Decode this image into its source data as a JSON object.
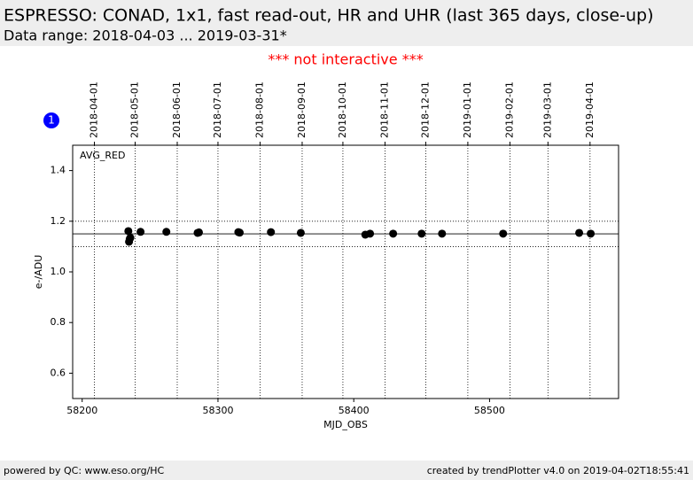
{
  "header": {
    "title": "ESPRESSO: CONAD, 1x1, fast read-out, HR and UHR (last 365 days, close-up)",
    "subtitle": "Data range: 2018-04-03 ... 2019-03-31*",
    "notice": "*** not interactive ***",
    "badge": "1"
  },
  "chart_data": {
    "type": "scatter",
    "panel_label": "AVG_RED",
    "x_label": "MJD_OBS",
    "y_label": "e-/ADU",
    "color": "#000000",
    "x": [
      58234,
      58234.5,
      58235,
      58235.5,
      58243,
      58262,
      58285,
      58286,
      58315,
      58316,
      58339,
      58361,
      58408.5,
      58412,
      58429,
      58450,
      58465,
      58510,
      58566,
      58574.5
    ],
    "values": [
      1.161,
      1.119,
      1.13,
      1.135,
      1.158,
      1.158,
      1.154,
      1.156,
      1.157,
      1.155,
      1.157,
      1.154,
      1.147,
      1.151,
      1.151,
      1.151,
      1.151,
      1.151,
      1.154,
      1.151
    ],
    "xlim": [
      58193,
      58595
    ],
    "ylim": [
      0.5,
      1.5
    ],
    "xticks": [
      58200,
      58300,
      58400,
      58500
    ],
    "yticks": [
      {
        "value": 0.6,
        "label": "0.6"
      },
      {
        "value": 0.8,
        "label": "0.8"
      },
      {
        "value": 1.0,
        "label": "1.0"
      },
      {
        "value": 1.2,
        "label": "1.2"
      },
      {
        "value": 1.4,
        "label": "1.4"
      }
    ],
    "x2ticks": [
      {
        "value": 58209,
        "label": "2018-04-01"
      },
      {
        "value": 58239,
        "label": "2018-05-01"
      },
      {
        "value": 58270,
        "label": "2018-06-01"
      },
      {
        "value": 58300,
        "label": "2018-07-01"
      },
      {
        "value": 58331,
        "label": "2018-08-01"
      },
      {
        "value": 58362,
        "label": "2018-09-01"
      },
      {
        "value": 58392,
        "label": "2018-10-01"
      },
      {
        "value": 58423,
        "label": "2018-11-01"
      },
      {
        "value": 58453,
        "label": "2018-12-01"
      },
      {
        "value": 58484,
        "label": "2019-01-01"
      },
      {
        "value": 58515,
        "label": "2019-02-01"
      },
      {
        "value": 58543,
        "label": "2019-03-01"
      },
      {
        "value": 58574,
        "label": "2019-04-01"
      }
    ],
    "reference_lines": [
      {
        "value": 1.15,
        "style": "solid"
      },
      {
        "value": 1.2,
        "style": "dotted"
      },
      {
        "value": 1.1,
        "style": "dotted"
      }
    ]
  },
  "footer": {
    "left": "powered by QC: www.eso.org/HC",
    "right": "created by trendPlotter v4.0 on 2019-04-02T18:55:41"
  }
}
